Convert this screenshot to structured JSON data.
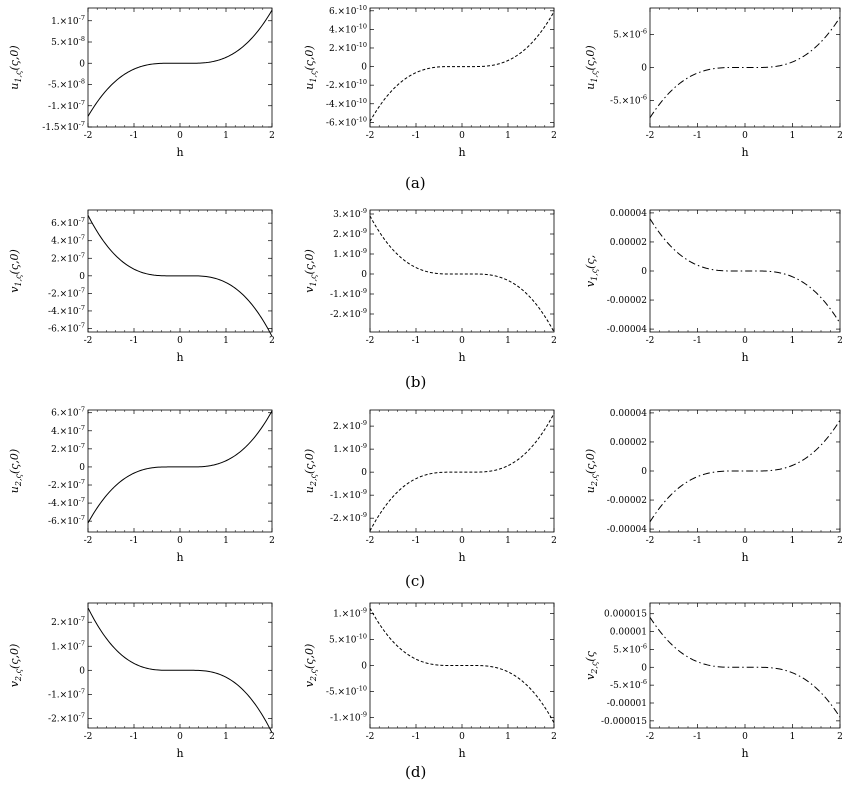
{
  "captions": [
    "(a)",
    "(b)",
    "(c)",
    "(d)"
  ],
  "chart_data": [
    {
      "type": "line",
      "row": 0,
      "col": 0,
      "style": "solid",
      "ylabel": "u_{1,ς}(ς,0)",
      "xlabel": "h",
      "xlim": [
        -2,
        2
      ],
      "ylim": [
        -1.5e-07,
        1.3e-07
      ],
      "x_ticks": [
        -2,
        -1,
        0,
        1,
        2
      ],
      "y_ticks": [
        {
          "value": 1e-07,
          "label": "1.×10^-7"
        },
        {
          "value": 5e-08,
          "label": "5.×10^-8"
        },
        {
          "value": 0,
          "label": "0"
        },
        {
          "value": -5e-08,
          "label": "-5.×10^-8"
        },
        {
          "value": -1e-07,
          "label": "-1.×10^-7"
        },
        {
          "value": -1.5e-07,
          "label": "-1.5×10^-7"
        }
      ],
      "curve": {
        "amplitude": 1.25e-07,
        "sign": 1
      }
    },
    {
      "type": "line",
      "row": 0,
      "col": 1,
      "style": "dashed",
      "ylabel": "u_{1,ς}(ς,0)",
      "xlabel": "h",
      "xlim": [
        -2,
        2
      ],
      "ylim": [
        -6.5e-10,
        6.3e-10
      ],
      "x_ticks": [
        -2,
        -1,
        0,
        1,
        2
      ],
      "y_ticks": [
        {
          "value": 6e-10,
          "label": "6.×10^-10"
        },
        {
          "value": 4e-10,
          "label": "4.×10^-10"
        },
        {
          "value": 2e-10,
          "label": "2.×10^-10"
        },
        {
          "value": 0,
          "label": "0"
        },
        {
          "value": -2e-10,
          "label": "-2.×10^-10"
        },
        {
          "value": -4e-10,
          "label": "-4.×10^-10"
        },
        {
          "value": -6e-10,
          "label": "-6.×10^-10"
        }
      ],
      "curve": {
        "amplitude": 5.9e-10,
        "sign": 1
      }
    },
    {
      "type": "line",
      "row": 0,
      "col": 2,
      "style": "dashdot",
      "ylabel": "u_{1,ς}(ς,0)",
      "xlabel": "h",
      "xlim": [
        -2,
        2
      ],
      "ylim": [
        -9e-06,
        9e-06
      ],
      "x_ticks": [
        -2,
        -1,
        0,
        1,
        2
      ],
      "y_ticks": [
        {
          "value": 5e-06,
          "label": "5.×10^-6"
        },
        {
          "value": 0,
          "label": "0"
        },
        {
          "value": -5e-06,
          "label": "-5.×10^-6"
        }
      ],
      "curve": {
        "amplitude": 7.6e-06,
        "sign": 1
      }
    },
    {
      "type": "line",
      "row": 1,
      "col": 0,
      "style": "solid",
      "ylabel": "v_{1,ς}(ς,0)",
      "xlabel": "h",
      "xlim": [
        -2,
        2
      ],
      "ylim": [
        -6.4e-07,
        7.5e-07
      ],
      "x_ticks": [
        -2,
        -1,
        0,
        1,
        2
      ],
      "y_ticks": [
        {
          "value": 6e-07,
          "label": "6.×10^-7"
        },
        {
          "value": 4e-07,
          "label": "4.×10^-7"
        },
        {
          "value": 2e-07,
          "label": "2.×10^-7"
        },
        {
          "value": 0,
          "label": "0"
        },
        {
          "value": -2e-07,
          "label": "-2.×10^-7"
        },
        {
          "value": -4e-07,
          "label": "-4.×10^-7"
        },
        {
          "value": -6e-07,
          "label": "-6.×10^-7"
        }
      ],
      "curve": {
        "amplitude": 6.9e-07,
        "sign": -1
      }
    },
    {
      "type": "line",
      "row": 1,
      "col": 1,
      "style": "dashed",
      "ylabel": "v_{1,ς}(ς,0)",
      "xlabel": "h",
      "xlim": [
        -2,
        2
      ],
      "ylim": [
        -2.9e-09,
        3.2e-09
      ],
      "x_ticks": [
        -2,
        -1,
        0,
        1,
        2
      ],
      "y_ticks": [
        {
          "value": 3e-09,
          "label": "3.×10^-9"
        },
        {
          "value": 2e-09,
          "label": "2.×10^-9"
        },
        {
          "value": 1e-09,
          "label": "1.×10^-9"
        },
        {
          "value": 0,
          "label": "0"
        },
        {
          "value": -1e-09,
          "label": "-1.×10^-9"
        },
        {
          "value": -2e-09,
          "label": "-2.×10^-9"
        }
      ],
      "curve": {
        "amplitude": 2.9e-09,
        "sign": -1
      }
    },
    {
      "type": "line",
      "row": 1,
      "col": 2,
      "style": "dashdot",
      "ylabel": "v_{1,ς}(ς,",
      "xlabel": "h",
      "xlim": [
        -2,
        2
      ],
      "ylim": [
        -4.2e-05,
        4.2e-05
      ],
      "x_ticks": [
        -2,
        -1,
        0,
        1,
        2
      ],
      "y_ticks": [
        {
          "value": 4e-05,
          "label": "0.00004"
        },
        {
          "value": 2e-05,
          "label": "0.00002"
        },
        {
          "value": 0,
          "label": "0"
        },
        {
          "value": -2e-05,
          "label": "-0.00002"
        },
        {
          "value": -4e-05,
          "label": "-0.00004"
        }
      ],
      "curve": {
        "amplitude": 3.6e-05,
        "sign": -1
      }
    },
    {
      "type": "line",
      "row": 2,
      "col": 0,
      "style": "solid",
      "ylabel": "u_{2,ς}(ς,0)",
      "xlabel": "h",
      "xlim": [
        -2,
        2
      ],
      "ylim": [
        -7.2e-07,
        6.3e-07
      ],
      "x_ticks": [
        -2,
        -1,
        0,
        1,
        2
      ],
      "y_ticks": [
        {
          "value": 6e-07,
          "label": "6.×10^-7"
        },
        {
          "value": 4e-07,
          "label": "4.×10^-7"
        },
        {
          "value": 2e-07,
          "label": "2.×10^-7"
        },
        {
          "value": 0,
          "label": "0"
        },
        {
          "value": -2e-07,
          "label": "-2.×10^-7"
        },
        {
          "value": -4e-07,
          "label": "-4.×10^-7"
        },
        {
          "value": -6e-07,
          "label": "-6.×10^-7"
        }
      ],
      "curve": {
        "amplitude": 6.2e-07,
        "sign": 1
      }
    },
    {
      "type": "line",
      "row": 2,
      "col": 1,
      "style": "dashed",
      "ylabel": "u_{2,ς}(ς,0)",
      "xlabel": "h",
      "xlim": [
        -2,
        2
      ],
      "ylim": [
        -2.6e-09,
        2.7e-09
      ],
      "x_ticks": [
        -2,
        -1,
        0,
        1,
        2
      ],
      "y_ticks": [
        {
          "value": 2e-09,
          "label": "2.×10^-9"
        },
        {
          "value": 1e-09,
          "label": "1.×10^-9"
        },
        {
          "value": 0,
          "label": "0"
        },
        {
          "value": -1e-09,
          "label": "-1.×10^-9"
        },
        {
          "value": -2e-09,
          "label": "-2.×10^-9"
        }
      ],
      "curve": {
        "amplitude": 2.55e-09,
        "sign": 1
      }
    },
    {
      "type": "line",
      "row": 2,
      "col": 2,
      "style": "dashdot",
      "ylabel": "u_{2,ς}(ς,0)",
      "xlabel": "h",
      "xlim": [
        -2,
        2
      ],
      "ylim": [
        -4.2e-05,
        4.2e-05
      ],
      "x_ticks": [
        -2,
        -1,
        0,
        1,
        2
      ],
      "y_ticks": [
        {
          "value": 4e-05,
          "label": "0.00004"
        },
        {
          "value": 2e-05,
          "label": "0.00002"
        },
        {
          "value": 0,
          "label": "0"
        },
        {
          "value": -2e-05,
          "label": "-0.00002"
        },
        {
          "value": -4e-05,
          "label": "-0.00004"
        }
      ],
      "curve": {
        "amplitude": 3.5e-05,
        "sign": 1
      }
    },
    {
      "type": "line",
      "row": 3,
      "col": 0,
      "style": "solid",
      "ylabel": "v_{2,ς}(ς,0)",
      "xlabel": "h",
      "xlim": [
        -2,
        2
      ],
      "ylim": [
        -2.4e-07,
        2.8e-07
      ],
      "x_ticks": [
        -2,
        -1,
        0,
        1,
        2
      ],
      "y_ticks": [
        {
          "value": 2e-07,
          "label": "2.×10^-7"
        },
        {
          "value": 1e-07,
          "label": "1.×10^-7"
        },
        {
          "value": 0,
          "label": "0"
        },
        {
          "value": -1e-07,
          "label": "-1.×10^-7"
        },
        {
          "value": -2e-07,
          "label": "-2.×10^-7"
        }
      ],
      "curve": {
        "amplitude": 2.6e-07,
        "sign": -1
      }
    },
    {
      "type": "line",
      "row": 3,
      "col": 1,
      "style": "dashed",
      "ylabel": "v_{2,ς}(ς,0)",
      "xlabel": "h",
      "xlim": [
        -2,
        2
      ],
      "ylim": [
        -1.2e-09,
        1.2e-09
      ],
      "x_ticks": [
        -2,
        -1,
        0,
        1,
        2
      ],
      "y_ticks": [
        {
          "value": 1e-09,
          "label": "1.×10^-9"
        },
        {
          "value": 5e-10,
          "label": "5.×10^-10"
        },
        {
          "value": 0,
          "label": "0"
        },
        {
          "value": -5e-10,
          "label": "-5.×10^-10"
        },
        {
          "value": -1e-09,
          "label": "-1.×10^-9"
        }
      ],
      "curve": {
        "amplitude": 1.1e-09,
        "sign": -1
      }
    },
    {
      "type": "line",
      "row": 3,
      "col": 2,
      "style": "dashdot",
      "ylabel": "v_{2,ς}(ς",
      "xlabel": "h",
      "xlim": [
        -2,
        2
      ],
      "ylim": [
        -1.7e-05,
        1.8e-05
      ],
      "x_ticks": [
        -2,
        -1,
        0,
        1,
        2
      ],
      "y_ticks": [
        {
          "value": 1.5e-05,
          "label": "0.000015"
        },
        {
          "value": 1e-05,
          "label": "0.00001"
        },
        {
          "value": 5e-06,
          "label": "5.×10^-6"
        },
        {
          "value": 0,
          "label": "0"
        },
        {
          "value": -5e-06,
          "label": "-5.×10^-6"
        },
        {
          "value": -1e-05,
          "label": "-0.00001"
        },
        {
          "value": -1.5e-05,
          "label": "-0.000015"
        }
      ],
      "curve": {
        "amplitude": 1.4e-05,
        "sign": -1
      }
    }
  ]
}
